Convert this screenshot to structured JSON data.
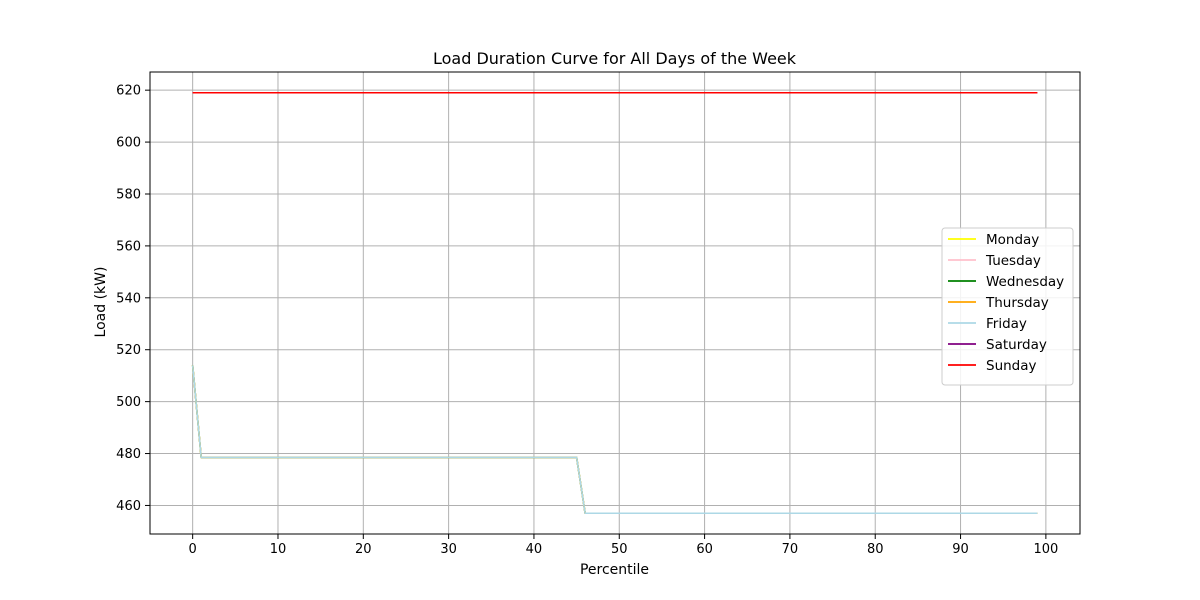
{
  "chart_data": {
    "type": "line",
    "title": "Load Duration Curve for All Days of the Week",
    "xlabel": "Percentile",
    "ylabel": "Load (kW)",
    "xlim": [
      -5,
      104
    ],
    "ylim": [
      449,
      627
    ],
    "xticks": [
      0,
      10,
      20,
      30,
      40,
      50,
      60,
      70,
      80,
      90,
      100
    ],
    "yticks": [
      460,
      480,
      500,
      520,
      540,
      560,
      580,
      600,
      620
    ],
    "grid": true,
    "legend_position": "center-right",
    "series": [
      {
        "name": "Monday",
        "color": "#ffff00",
        "points": [
          [
            0,
            514
          ],
          [
            1,
            478.5
          ],
          [
            45,
            478.5
          ],
          [
            46,
            457
          ],
          [
            99,
            457
          ]
        ]
      },
      {
        "name": "Tuesday",
        "color": "#ffc0cb",
        "points": [
          [
            0,
            514
          ],
          [
            1,
            478.5
          ],
          [
            45,
            478.5
          ],
          [
            46,
            457
          ],
          [
            99,
            457
          ]
        ]
      },
      {
        "name": "Wednesday",
        "color": "#008000",
        "points": [
          [
            0,
            514
          ],
          [
            1,
            478.5
          ],
          [
            45,
            478.5
          ],
          [
            46,
            457
          ],
          [
            99,
            457
          ]
        ]
      },
      {
        "name": "Thursday",
        "color": "#ffa500",
        "points": [
          [
            0,
            514
          ],
          [
            1,
            478.5
          ],
          [
            45,
            478.5
          ],
          [
            46,
            457
          ],
          [
            99,
            457
          ]
        ]
      },
      {
        "name": "Friday",
        "color": "#add8e6",
        "points": [
          [
            0,
            514
          ],
          [
            1,
            478.5
          ],
          [
            45,
            478.5
          ],
          [
            46,
            457
          ],
          [
            99,
            457
          ]
        ]
      },
      {
        "name": "Saturday",
        "color": "#800080",
        "points": [
          [
            0,
            619
          ],
          [
            99,
            619
          ]
        ]
      },
      {
        "name": "Sunday",
        "color": "#ff0000",
        "points": [
          [
            0,
            619
          ],
          [
            99,
            619
          ]
        ]
      }
    ]
  }
}
